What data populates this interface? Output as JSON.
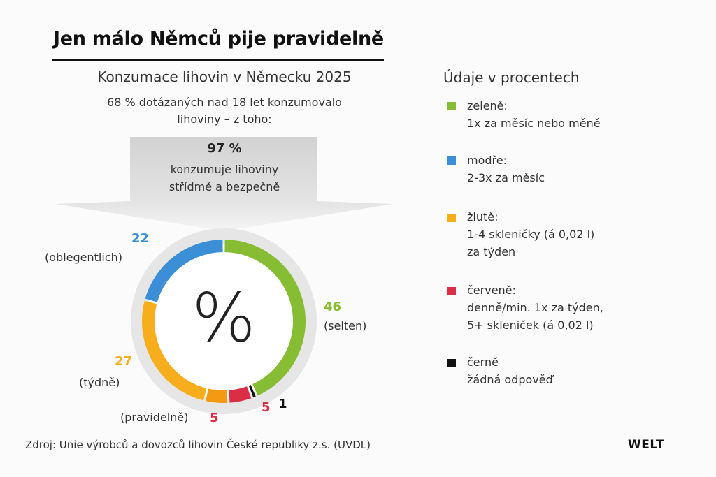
{
  "headline": "Jen málo Němců pije pravidelně",
  "subtitle": "Konzumace lihovin v Německu 2025",
  "subtext_lines": [
    "68 % dotázaných nad 18 let konzumovalo",
    "lihoviny – z toho:"
  ],
  "callout": {
    "value": "97 %",
    "lines": [
      "konzumuje lihoviny",
      "střídmě a bezpečně"
    ]
  },
  "center_symbol": "%",
  "legend": {
    "title": "Údaje v procentech",
    "items": [
      {
        "color": "#86bd32",
        "name": "zeleně:",
        "lines": [
          "1x za měsíc nebo měně"
        ]
      },
      {
        "color": "#3b8fd6",
        "name": "modře:",
        "lines": [
          "2-3x za měsíc"
        ]
      },
      {
        "color": "#f7ad1c",
        "name": "žlutě:",
        "lines": [
          "1-4 skleničky (á 0,02 l)",
          "za týden"
        ]
      },
      {
        "color": "#d92e45",
        "name": "červeně:",
        "lines": [
          "denně/min. 1x za týden,",
          "5+ skleniček (á 0,02 l)"
        ]
      },
      {
        "color": "#111111",
        "name": "černě",
        "lines": [
          "žádná odpověď"
        ]
      }
    ]
  },
  "chart_data": {
    "type": "pie",
    "style": "donut",
    "title": "Konzumace lihovin v Německu 2025",
    "unit": "%",
    "slices": [
      {
        "value": 46,
        "label": "(selten)",
        "color": "#86bd32"
      },
      {
        "value": 1,
        "label": "",
        "color": "#111111"
      },
      {
        "value": 5,
        "label": "",
        "color": "#d92e45"
      },
      {
        "value": 5,
        "label": "(pravidelně)",
        "color": "#f39a12"
      },
      {
        "value": 27,
        "label": "(týdně)",
        "color": "#f7ad1c"
      },
      {
        "value": 22,
        "label": "(oblegentlich)",
        "color": "#3b8fd6"
      }
    ]
  },
  "source": "Zdroj: Unie výrobců a dovozců lihovin České republiky z.s. (UVDL)",
  "brand": "WELT"
}
